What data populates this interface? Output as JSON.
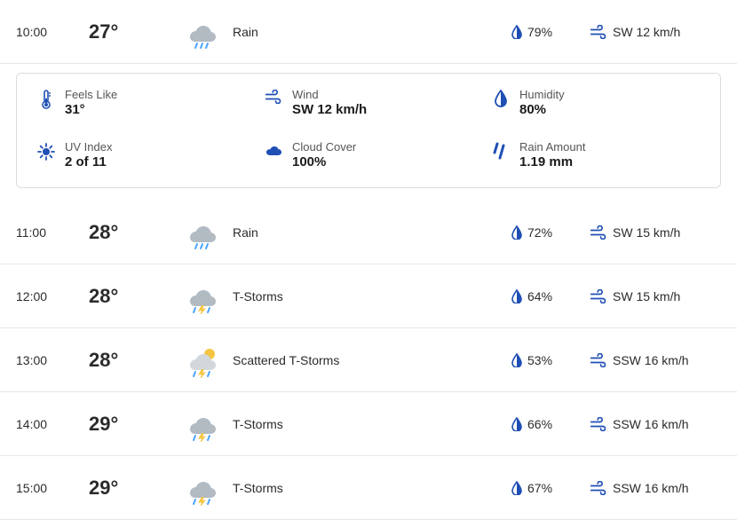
{
  "colors": {
    "blue": "#1f4fb4",
    "cloud_light": "#d2d7dc",
    "cloud_dark": "#b2bac2",
    "sun": "#f5c542",
    "bolt": "#f5c542",
    "drop": "#4aa3ff",
    "text": "#2b2b2b"
  },
  "expanded": {
    "time": "10:00",
    "temp": "27°",
    "condition": "Rain",
    "condition_icon": "rain",
    "precip": "79%",
    "wind": "SW 12 km/h",
    "details": {
      "feels_like": {
        "label": "Feels Like",
        "value": "31°"
      },
      "wind": {
        "label": "Wind",
        "value": "SW 12 km/h"
      },
      "humidity": {
        "label": "Humidity",
        "value": "80%"
      },
      "uv": {
        "label": "UV Index",
        "value": "2 of 11"
      },
      "cloud": {
        "label": "Cloud Cover",
        "value": "100%"
      },
      "rain_amt": {
        "label": "Rain Amount",
        "value": "1.19 mm"
      }
    }
  },
  "rows": [
    {
      "time": "11:00",
      "temp": "28°",
      "condition": "Rain",
      "condition_icon": "rain",
      "precip": "72%",
      "wind": "SW 15 km/h"
    },
    {
      "time": "12:00",
      "temp": "28°",
      "condition": "T-Storms",
      "condition_icon": "tstorm",
      "precip": "64%",
      "wind": "SW 15 km/h"
    },
    {
      "time": "13:00",
      "temp": "28°",
      "condition": "Scattered T-Storms",
      "condition_icon": "scattered-tstorm",
      "precip": "53%",
      "wind": "SSW 16 km/h"
    },
    {
      "time": "14:00",
      "temp": "29°",
      "condition": "T-Storms",
      "condition_icon": "tstorm",
      "precip": "66%",
      "wind": "SSW 16 km/h"
    },
    {
      "time": "15:00",
      "temp": "29°",
      "condition": "T-Storms",
      "condition_icon": "tstorm",
      "precip": "67%",
      "wind": "SSW 16 km/h"
    }
  ]
}
